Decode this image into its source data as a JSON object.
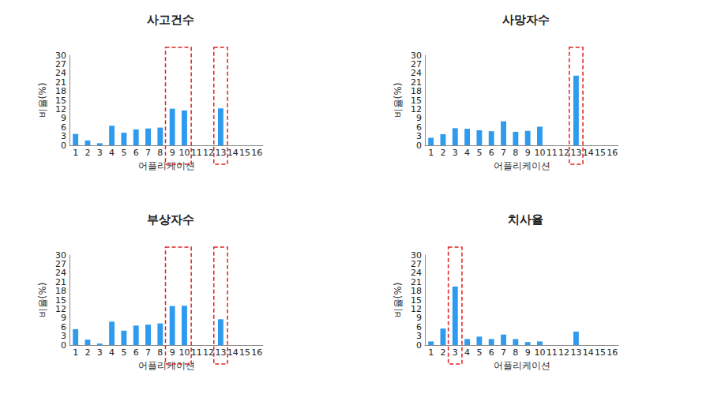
{
  "chart_data": [
    {
      "type": "bar",
      "title": "사고건수",
      "x_label": "어플리케이션",
      "y_label": "비율(%)",
      "categories": [
        "1",
        "2",
        "3",
        "4",
        "5",
        "6",
        "7",
        "8",
        "9",
        "10",
        "11",
        "12",
        "13",
        "14",
        "15",
        "16"
      ],
      "values": [
        3.8,
        1.6,
        0.7,
        6.5,
        4.2,
        5.3,
        5.6,
        5.9,
        12.2,
        11.6,
        0,
        0,
        12.3,
        0,
        0,
        0
      ],
      "color": "#2f9bef",
      "ylim": [
        0,
        30
      ],
      "yticks": [
        0,
        3,
        6,
        9,
        12,
        15,
        18,
        21,
        24,
        27,
        30
      ],
      "grid": false,
      "highlight": [
        "9",
        "10",
        "13"
      ]
    },
    {
      "type": "bar",
      "title": "사망자수",
      "x_label": "어플리케이션",
      "y_label": "비율(%)",
      "categories": [
        "1",
        "2",
        "3",
        "4",
        "5",
        "6",
        "7",
        "8",
        "9",
        "10",
        "11",
        "12",
        "13",
        "14",
        "15",
        "16"
      ],
      "values": [
        2.5,
        3.7,
        5.7,
        5.5,
        5.0,
        4.7,
        8.0,
        4.5,
        4.8,
        6.2,
        0,
        0,
        23.2,
        0,
        0,
        0
      ],
      "color": "#2f9bef",
      "ylim": [
        0,
        30
      ],
      "yticks": [
        0,
        3,
        6,
        9,
        12,
        15,
        18,
        21,
        24,
        27,
        30
      ],
      "grid": false,
      "highlight": [
        "13"
      ]
    },
    {
      "type": "bar",
      "title": "부상자수",
      "x_label": "어플리케이션",
      "y_label": "비율(%)",
      "categories": [
        "1",
        "2",
        "3",
        "4",
        "5",
        "6",
        "7",
        "8",
        "9",
        "10",
        "11",
        "12",
        "13",
        "14",
        "15",
        "16"
      ],
      "values": [
        5.3,
        1.8,
        0.5,
        7.8,
        4.8,
        6.5,
        6.8,
        7.2,
        13.0,
        13.1,
        0,
        0,
        8.6,
        0,
        0,
        0
      ],
      "color": "#2f9bef",
      "ylim": [
        0,
        30
      ],
      "yticks": [
        0,
        3,
        6,
        9,
        12,
        15,
        18,
        21,
        24,
        27,
        30
      ],
      "grid": false,
      "highlight": [
        "9",
        "10",
        "13"
      ]
    },
    {
      "type": "bar",
      "title": "치사율",
      "x_label": "어플리케이션",
      "y_label": "비율(%)",
      "categories": [
        "1",
        "2",
        "3",
        "4",
        "5",
        "6",
        "7",
        "8",
        "9",
        "10",
        "11",
        "12",
        "13",
        "14",
        "15",
        "16"
      ],
      "values": [
        1.2,
        5.5,
        19.5,
        2.0,
        2.8,
        2.0,
        3.5,
        2.0,
        1.0,
        1.2,
        0,
        0,
        4.5,
        0,
        0,
        0
      ],
      "color": "#2f9bef",
      "ylim": [
        0,
        30
      ],
      "yticks": [
        0,
        3,
        6,
        9,
        12,
        15,
        18,
        21,
        24,
        27,
        30
      ],
      "grid": false,
      "highlight": [
        "3"
      ]
    }
  ]
}
